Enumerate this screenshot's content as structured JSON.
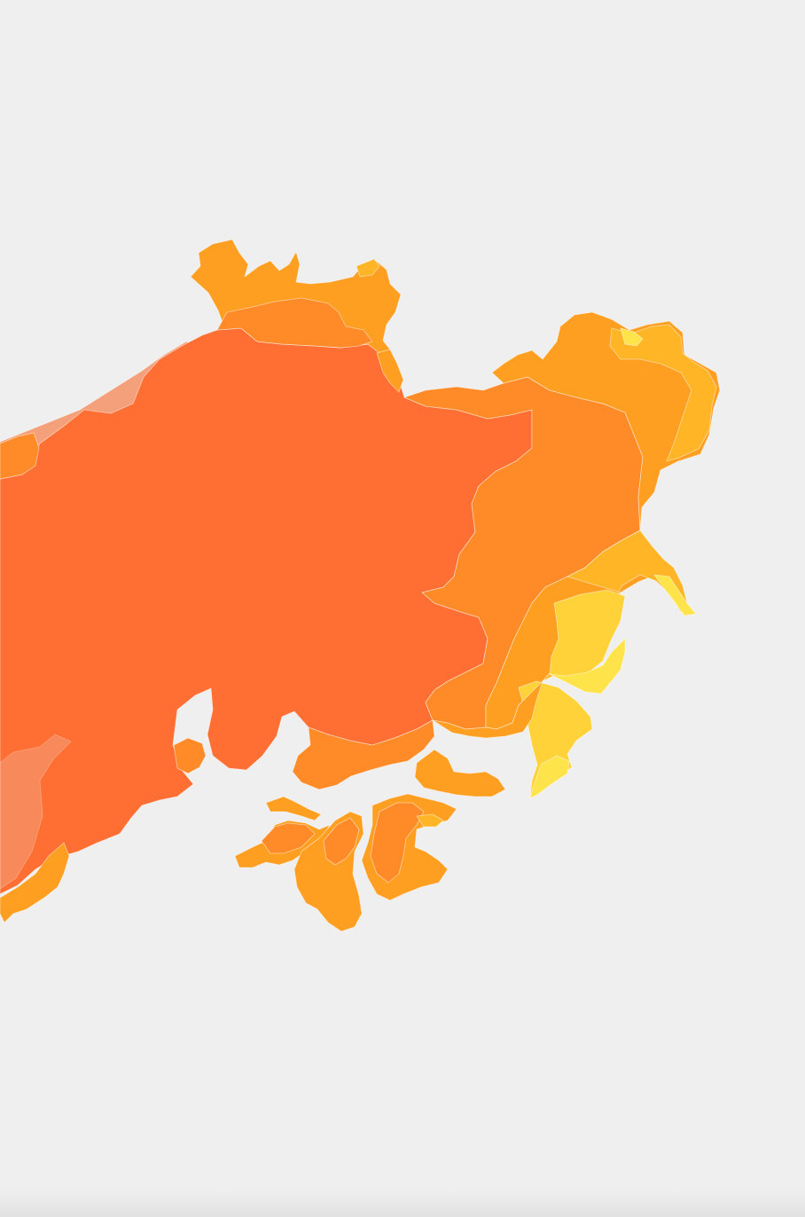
{
  "map": {
    "background_color": "#efefef",
    "palette": {
      "class_1": "#ff6f33",
      "class_2": "#ff8a28",
      "class_3": "#ff9f22",
      "class_4": "#ffb526",
      "class_5": "#ffd23a",
      "class_6": "#ffe34a",
      "shallow_water": "#f4a07a"
    }
  }
}
